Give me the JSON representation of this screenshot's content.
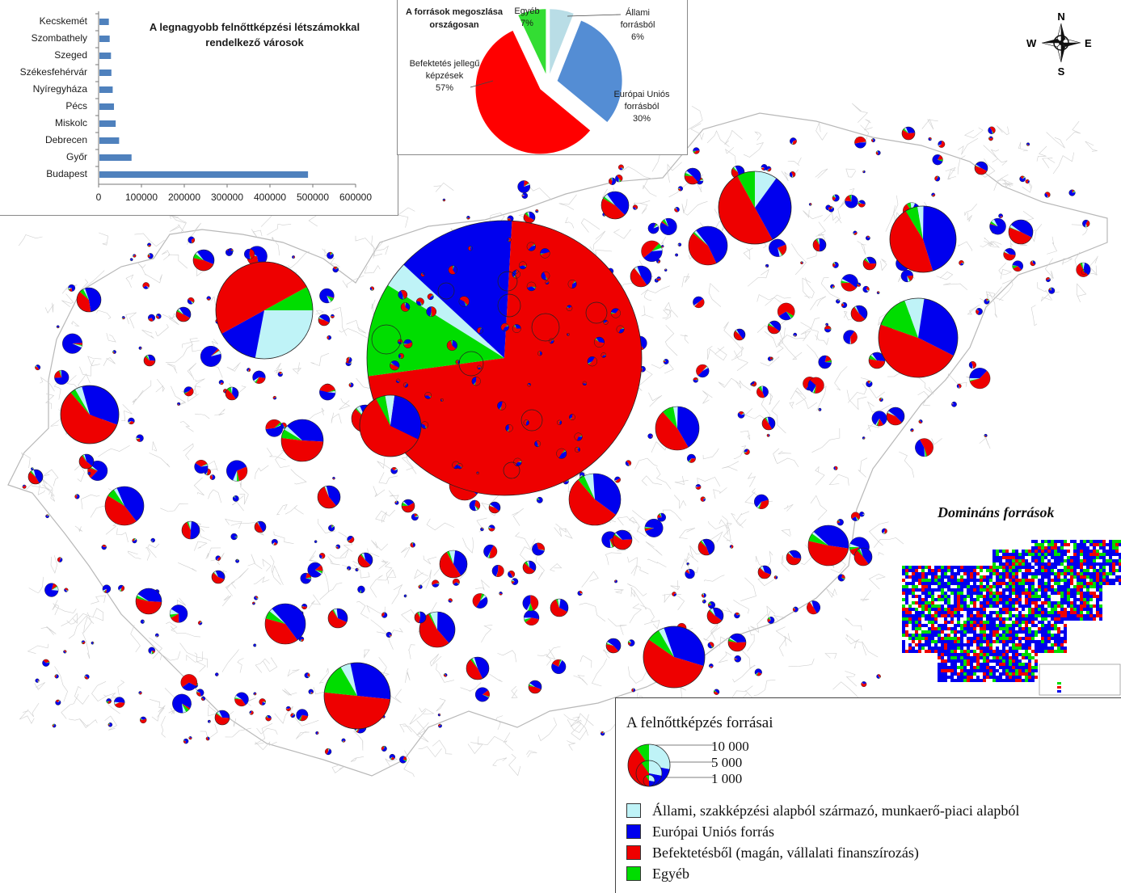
{
  "colors": {
    "allami": "#bff3f7",
    "eu": "#0000ee",
    "befektetes": "#ee0000",
    "egyeb": "#00dd00",
    "bar": "#4f81bd",
    "pie_allami": "#b9dde6",
    "pie_eu": "#548dd4",
    "pie_befektetes": "#ff0000",
    "pie_egyeb": "#33dd33"
  },
  "bar_chart": {
    "title": "A legnagyobb felnőttképzési létszámokkal rendelkező városok",
    "cities": [
      "Kecskemét",
      "Szombathely",
      "Szeged",
      "Székesfehérvár",
      "Nyíregyháza",
      "Pécs",
      "Miskolc",
      "Debrecen",
      "Győr",
      "Budapest"
    ],
    "values": [
      22000,
      24000,
      27000,
      28000,
      31000,
      34000,
      38000,
      46000,
      75000,
      487000
    ],
    "xticks": [
      "0",
      "100000",
      "200000",
      "300000",
      "400000",
      "500000",
      "600000"
    ],
    "xmax": 600000
  },
  "pie_chart": {
    "title": "A források megoszlása országosan",
    "slices": [
      {
        "label": "Állami forrásból",
        "pct": "6%",
        "value": 6
      },
      {
        "label": "Európai Uniós forrásból",
        "pct": "30%",
        "value": 30
      },
      {
        "label": "Befektetés jellegű képzések",
        "pct": "57%",
        "value": 57
      },
      {
        "label": "Egyéb",
        "pct": "7%",
        "value": 7
      }
    ]
  },
  "compass": {
    "n": "N",
    "s": "S",
    "e": "E",
    "w": "W"
  },
  "dominant": {
    "title": "Domináns források"
  },
  "legend": {
    "title": "A felnőttképzés forrásai",
    "sizes": [
      "10 000",
      "5 000",
      "1 000"
    ],
    "items": [
      {
        "key": "allami",
        "label": "Állami, szakképzési alapból származó, munkaerő-piaci alapból"
      },
      {
        "key": "eu",
        "label": "Európai Uniós forrás"
      },
      {
        "key": "befektetes",
        "label": "Befektetésből (magán, vállalati  finanszírozás)"
      },
      {
        "key": "egyeb",
        "label": "Egyéb"
      }
    ]
  },
  "map": {
    "big_pies": [
      {
        "cx": 624,
        "cy": 443,
        "r": 170,
        "v": [
          0.03,
          0.14,
          0.72,
          0.11
        ],
        "s": -148
      },
      {
        "cx": 327,
        "cy": 384,
        "r": 60,
        "v": [
          0.28,
          0.14,
          0.5,
          0.08
        ],
        "s": 0
      },
      {
        "cx": 934,
        "cy": 257,
        "r": 45,
        "v": [
          0.1,
          0.32,
          0.5,
          0.08
        ],
        "s": -90
      },
      {
        "cx": 1142,
        "cy": 296,
        "r": 41,
        "v": [
          0.03,
          0.45,
          0.46,
          0.06
        ],
        "s": -100
      },
      {
        "cx": 1136,
        "cy": 418,
        "r": 49,
        "v": [
          0.08,
          0.3,
          0.48,
          0.14
        ],
        "s": -110
      },
      {
        "cx": 442,
        "cy": 861,
        "r": 41,
        "v": [
          0.05,
          0.3,
          0.5,
          0.15
        ],
        "s": -120
      },
      {
        "cx": 834,
        "cy": 813,
        "r": 38,
        "v": [
          0.03,
          0.35,
          0.55,
          0.07
        ],
        "s": -120
      },
      {
        "cx": 111,
        "cy": 513,
        "r": 36,
        "v": [
          0.04,
          0.35,
          0.58,
          0.03
        ],
        "s": -120
      },
      {
        "cx": 483,
        "cy": 527,
        "r": 38,
        "v": [
          0.05,
          0.3,
          0.6,
          0.05
        ],
        "s": -100
      }
    ]
  }
}
